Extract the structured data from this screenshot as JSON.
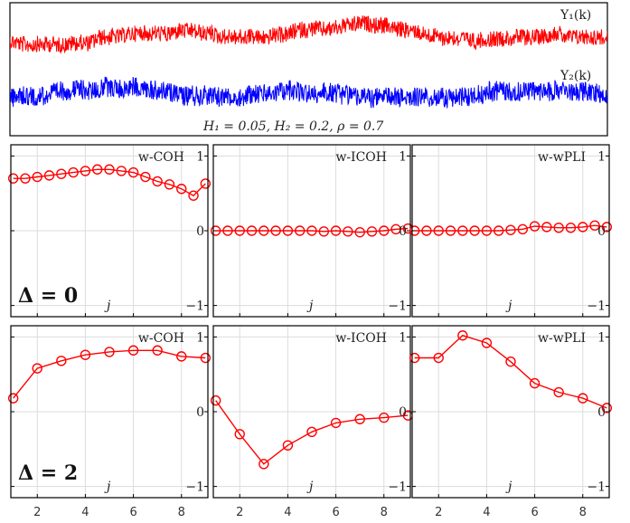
{
  "top": {
    "series1_label": "Y₁(k)",
    "series2_label": "Y₂(k)",
    "params_text": "H₁ = 0.05, H₂ = 0.2, ρ = 0.7",
    "series1_color": "#ff0000",
    "series2_color": "#0000ff"
  },
  "rows": [
    {
      "delta_label": "Δ = 0"
    },
    {
      "delta_label": "Δ = 2"
    }
  ],
  "chart_data": [
    {
      "type": "line",
      "row": 0,
      "title": "w-COH",
      "xlabel": "j",
      "xlim": [
        0.9,
        9.1
      ],
      "ylim": [
        -1.15,
        1.15
      ],
      "xticks": [
        2,
        4,
        6,
        8
      ],
      "yticks": [
        -1,
        0,
        1
      ],
      "ytick_labels": [
        "−1",
        "0",
        "1"
      ],
      "grid": true,
      "color": "#ff0000",
      "x": [
        1,
        1.5,
        2,
        2.5,
        3,
        3.5,
        4,
        4.5,
        5,
        5.5,
        6,
        6.5,
        7,
        7.5,
        8,
        8.5,
        9
      ],
      "y": [
        0.7,
        0.7,
        0.72,
        0.74,
        0.76,
        0.78,
        0.8,
        0.82,
        0.82,
        0.8,
        0.78,
        0.72,
        0.66,
        0.62,
        0.56,
        0.47,
        0.63
      ]
    },
    {
      "type": "line",
      "row": 0,
      "title": "w-ICOH",
      "xlabel": "j",
      "xlim": [
        0.9,
        9.1
      ],
      "ylim": [
        -1.15,
        1.15
      ],
      "xticks": [
        2,
        4,
        6,
        8
      ],
      "yticks": [
        -1,
        0,
        1
      ],
      "ytick_labels": [
        "−1",
        "0",
        "1"
      ],
      "grid": true,
      "color": "#ff0000",
      "x": [
        1,
        1.5,
        2,
        2.5,
        3,
        3.5,
        4,
        4.5,
        5,
        5.5,
        6,
        6.5,
        7,
        7.5,
        8,
        8.5,
        9
      ],
      "y": [
        0,
        0,
        0,
        0,
        0,
        0,
        0,
        0,
        0,
        -0.01,
        0,
        -0.01,
        -0.02,
        -0.01,
        0,
        0.02,
        0.03
      ]
    },
    {
      "type": "line",
      "row": 0,
      "title": "w-wPLI",
      "xlabel": "j",
      "xlim": [
        0.9,
        9.1
      ],
      "ylim": [
        -1.15,
        1.15
      ],
      "xticks": [
        2,
        4,
        6,
        8
      ],
      "yticks": [
        -1,
        0,
        1
      ],
      "ytick_labels": [
        "−1",
        "0",
        "1"
      ],
      "grid": true,
      "color": "#ff0000",
      "x": [
        1,
        1.5,
        2,
        2.5,
        3,
        3.5,
        4,
        4.5,
        5,
        5.5,
        6,
        6.5,
        7,
        7.5,
        8,
        8.5,
        9
      ],
      "y": [
        0,
        0,
        0,
        0,
        0,
        0,
        0,
        0,
        0.01,
        0.02,
        0.06,
        0.05,
        0.04,
        0.04,
        0.05,
        0.07,
        0.05
      ]
    },
    {
      "type": "line",
      "row": 1,
      "title": "w-COH",
      "xlabel": "j",
      "xlim": [
        0.9,
        9.1
      ],
      "ylim": [
        -1.15,
        1.15
      ],
      "xticks": [
        2,
        4,
        6,
        8
      ],
      "yticks": [
        -1,
        0,
        1
      ],
      "ytick_labels": [
        "−1",
        "0",
        "1"
      ],
      "grid": true,
      "color": "#ff0000",
      "x": [
        1,
        2,
        3,
        4,
        5,
        6,
        7,
        8,
        9
      ],
      "y": [
        0.18,
        0.58,
        0.68,
        0.76,
        0.8,
        0.82,
        0.82,
        0.74,
        0.72
      ]
    },
    {
      "type": "line",
      "row": 1,
      "title": "w-ICOH",
      "xlabel": "j",
      "xlim": [
        0.9,
        9.1
      ],
      "ylim": [
        -1.15,
        1.15
      ],
      "xticks": [
        2,
        4,
        6,
        8
      ],
      "yticks": [
        -1,
        0,
        1
      ],
      "ytick_labels": [
        "−1",
        "0",
        "1"
      ],
      "grid": true,
      "color": "#ff0000",
      "x": [
        1,
        2,
        3,
        4,
        5,
        6,
        7,
        8,
        9
      ],
      "y": [
        0.15,
        -0.3,
        -0.7,
        -0.45,
        -0.27,
        -0.15,
        -0.1,
        -0.08,
        -0.05
      ]
    },
    {
      "type": "line",
      "row": 1,
      "title": "w-wPLI",
      "xlabel": "j",
      "xlim": [
        0.9,
        9.1
      ],
      "ylim": [
        -1.15,
        1.15
      ],
      "xticks": [
        2,
        4,
        6,
        8
      ],
      "yticks": [
        -1,
        0,
        1
      ],
      "ytick_labels": [
        "−1",
        "0",
        "1"
      ],
      "grid": true,
      "color": "#ff0000",
      "x": [
        1,
        2,
        3,
        4,
        5,
        6,
        7,
        8,
        9
      ],
      "y": [
        0.72,
        0.72,
        1.02,
        0.92,
        0.67,
        0.38,
        0.26,
        0.18,
        0.05
      ]
    }
  ]
}
